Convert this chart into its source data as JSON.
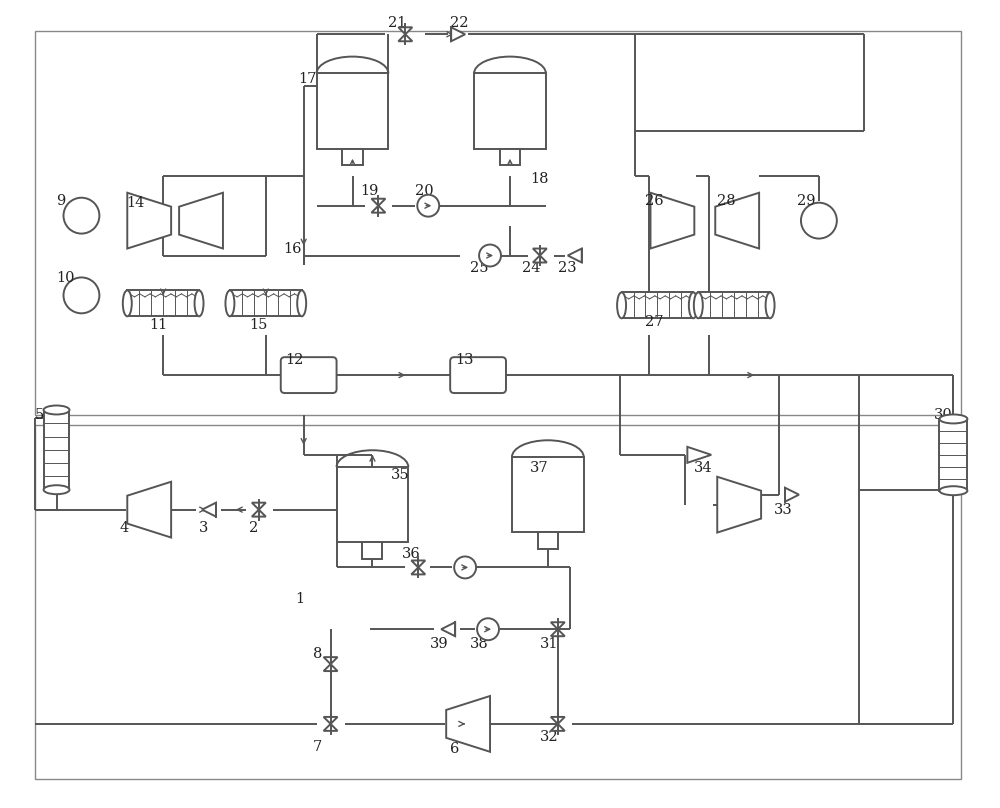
{
  "bg_color": "#ffffff",
  "lc": "#555555",
  "lw": 1.4,
  "figsize": [
    10.0,
    8.08
  ],
  "dpi": 100
}
